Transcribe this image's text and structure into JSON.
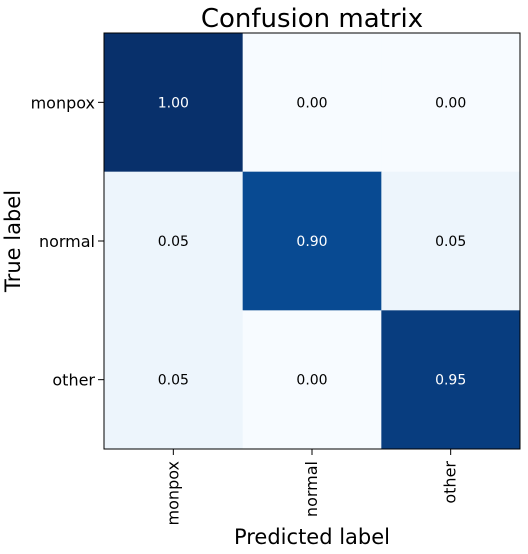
{
  "chart_data": {
    "type": "heatmap",
    "title": "Confusion matrix",
    "xlabel": "Predicted label",
    "ylabel": "True label",
    "x_categories": [
      "monpox",
      "normal",
      "other"
    ],
    "y_categories": [
      "monpox",
      "normal",
      "other"
    ],
    "values": [
      [
        1.0,
        0.0,
        0.0
      ],
      [
        0.05,
        0.9,
        0.05
      ],
      [
        0.05,
        0.0,
        0.95
      ]
    ],
    "value_format": "0.00",
    "colormap": "Blues",
    "colors": {
      "low": "#f7fbff",
      "high": "#08306b",
      "text_on_dark": "#ffffff",
      "text_on_light": "#000000"
    },
    "value_range": [
      0,
      1
    ],
    "grid": false,
    "x_tick_rotation": "vertical"
  }
}
